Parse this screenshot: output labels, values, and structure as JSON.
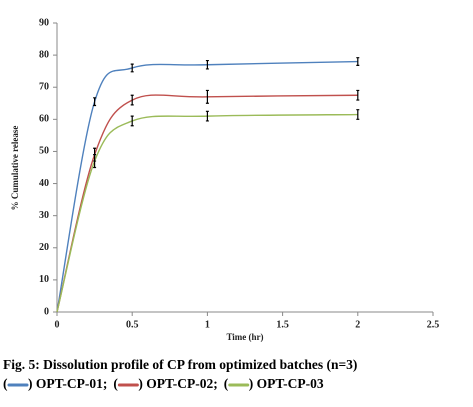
{
  "chart_data": {
    "type": "line",
    "xlabel": "Time (hr)",
    "ylabel": "% Cumulative release",
    "caption": "Fig. 5: Dissolution profile of CP from optimized batches (n=3)",
    "x": [
      0,
      0.25,
      0.5,
      1,
      2
    ],
    "series": [
      {
        "name": "OPT-CP-01",
        "color": "#4f81bd",
        "values": [
          0,
          65.5,
          76,
          77,
          78
        ],
        "errors": [
          null,
          1.2,
          1.2,
          1.3,
          1.2
        ]
      },
      {
        "name": "OPT-CP-02",
        "color": "#c0504d",
        "values": [
          0,
          49,
          66,
          67,
          67.5
        ],
        "errors": [
          null,
          2,
          1.5,
          2,
          1.5
        ]
      },
      {
        "name": "OPT-CP-03",
        "color": "#9bbb59",
        "values": [
          0,
          47,
          59.5,
          61,
          61.5
        ],
        "errors": [
          null,
          2,
          1.5,
          1.5,
          1.5
        ]
      }
    ],
    "xlim": [
      0,
      2.5
    ],
    "xticks": [
      0,
      0.5,
      1,
      1.5,
      2,
      2.5
    ],
    "ylim": [
      0,
      90
    ],
    "yticks": [
      0,
      10,
      20,
      30,
      40,
      50,
      60,
      70,
      80,
      90
    ]
  }
}
